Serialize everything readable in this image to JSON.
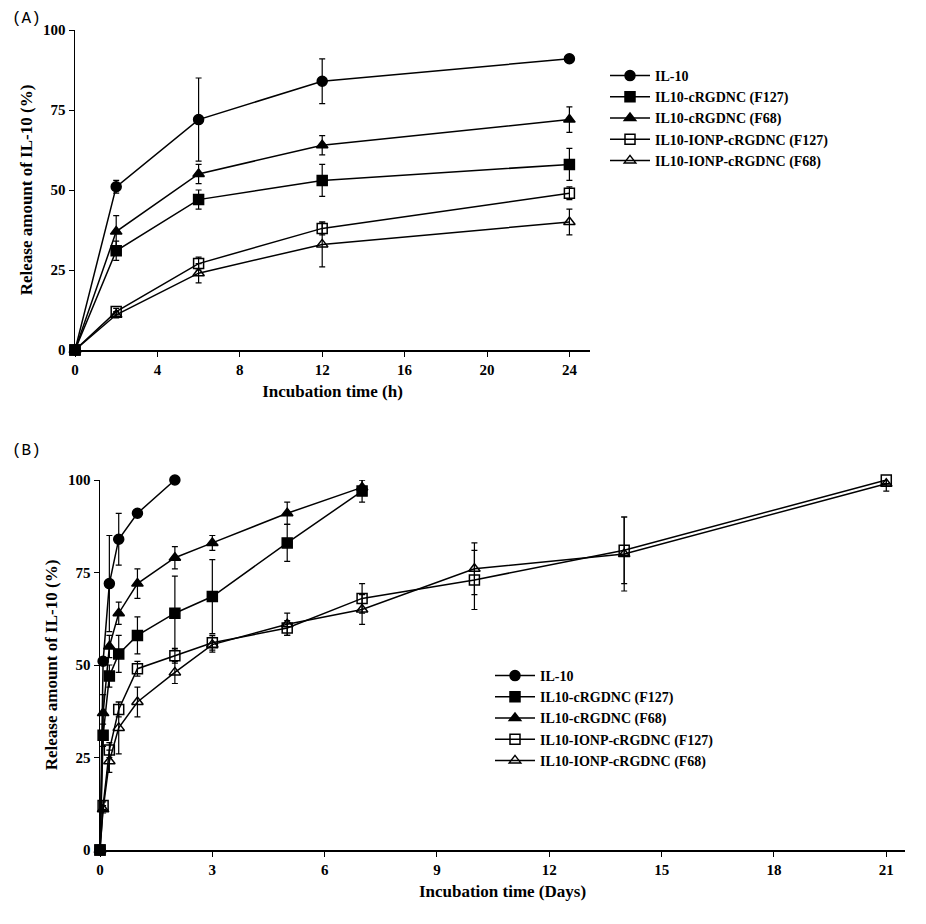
{
  "chart_data": [
    {
      "type": "line",
      "panel_label": "(A)",
      "x_title": "Incubation time (h)",
      "y_title": "Release amount of IL-10 (%)",
      "x": [
        0,
        2,
        6,
        12,
        24
      ],
      "xlim": [
        0,
        25
      ],
      "ylim": [
        0,
        100
      ],
      "xticks": [
        0,
        4,
        8,
        12,
        16,
        20,
        24
      ],
      "yticks": [
        0,
        25,
        50,
        75,
        100
      ],
      "legend": "right",
      "grid": false,
      "series": [
        {
          "name": "IL-10",
          "color": "#000000",
          "marker": "circle",
          "line_style": "solid",
          "values": [
            0,
            51,
            72,
            84,
            91
          ],
          "errors": [
            null,
            2,
            13,
            7,
            1
          ]
        },
        {
          "name": "IL10-cRGDNC (F127)",
          "color": "#000000",
          "marker": "square",
          "line_style": "solid",
          "values": [
            0,
            31,
            47,
            53,
            58
          ],
          "errors": [
            null,
            3,
            3,
            5,
            5
          ]
        },
        {
          "name": "IL10-cRGDNC (F68)",
          "color": "#000000",
          "marker": "triangle-up",
          "line_style": "solid",
          "values": [
            0,
            37,
            55,
            64,
            72
          ],
          "errors": [
            null,
            5,
            3,
            3,
            4
          ]
        },
        {
          "name": "IL10-IONP-cRGDNC (F127)",
          "color": "#000000",
          "marker": "square-open",
          "line_style": "solid",
          "values": [
            0,
            12,
            27,
            38,
            49
          ],
          "errors": [
            null,
            1,
            2,
            2,
            2
          ]
        },
        {
          "name": "IL10-IONP-cRGDNC (F68)",
          "color": "#000000",
          "marker": "triangle-up-open",
          "line_style": "solid",
          "values": [
            0,
            11,
            24,
            33,
            40
          ],
          "errors": [
            null,
            1,
            3,
            7,
            4
          ]
        }
      ]
    },
    {
      "type": "line",
      "panel_label": "(B)",
      "x_title": "Incubation time (Days)",
      "y_title": "Release amount of IL-10 (%)",
      "x": [
        0,
        0.083,
        0.25,
        0.5,
        1,
        2,
        3,
        5,
        7,
        10,
        14,
        21
      ],
      "xlim": [
        0,
        21.5
      ],
      "ylim": [
        0,
        100
      ],
      "xticks": [
        0,
        3,
        6,
        9,
        12,
        15,
        18,
        21
      ],
      "yticks": [
        0,
        25,
        50,
        75,
        100
      ],
      "legend": "lower right",
      "grid": false,
      "series": [
        {
          "name": "IL-10",
          "color": "#000000",
          "marker": "circle",
          "line_style": "solid",
          "values": [
            0,
            51,
            72,
            84,
            91,
            100,
            null,
            null,
            null,
            null,
            null,
            null
          ],
          "errors": [
            null,
            null,
            13,
            7,
            null,
            null,
            null,
            null,
            null,
            null,
            null,
            null
          ]
        },
        {
          "name": "IL10-cRGDNC (F127)",
          "color": "#000000",
          "marker": "square",
          "line_style": "solid",
          "values": [
            0,
            31,
            47,
            53,
            58,
            64,
            68.5,
            83,
            97,
            null,
            null,
            null
          ],
          "errors": [
            null,
            3,
            3,
            5,
            5,
            10,
            10,
            5,
            3,
            null,
            null,
            null
          ]
        },
        {
          "name": "IL10-cRGDNC (F68)",
          "color": "#000000",
          "marker": "triangle-up",
          "line_style": "solid",
          "values": [
            0,
            37,
            55,
            64,
            72,
            79,
            83,
            91,
            98,
            null,
            null,
            null
          ],
          "errors": [
            null,
            5,
            3,
            3,
            4,
            3,
            2,
            3,
            2,
            null,
            null,
            null
          ]
        },
        {
          "name": "IL10-IONP-cRGDNC (F127)",
          "color": "#000000",
          "marker": "square-open",
          "line_style": "solid",
          "values": [
            0,
            12,
            27,
            38,
            49,
            52.5,
            56,
            60,
            68,
            73,
            81,
            100
          ],
          "errors": [
            null,
            1,
            2,
            2,
            2,
            2,
            2,
            2,
            4,
            8,
            9,
            1
          ]
        },
        {
          "name": "IL10-IONP-cRGDNC (F68)",
          "color": "#000000",
          "marker": "triangle-up-open",
          "line_style": "solid",
          "values": [
            0,
            11,
            24,
            33,
            40,
            48,
            55.5,
            61,
            65,
            76,
            80,
            99
          ],
          "errors": [
            null,
            1,
            3,
            7,
            4,
            3,
            2,
            3,
            4,
            7,
            10,
            2
          ]
        }
      ]
    }
  ]
}
